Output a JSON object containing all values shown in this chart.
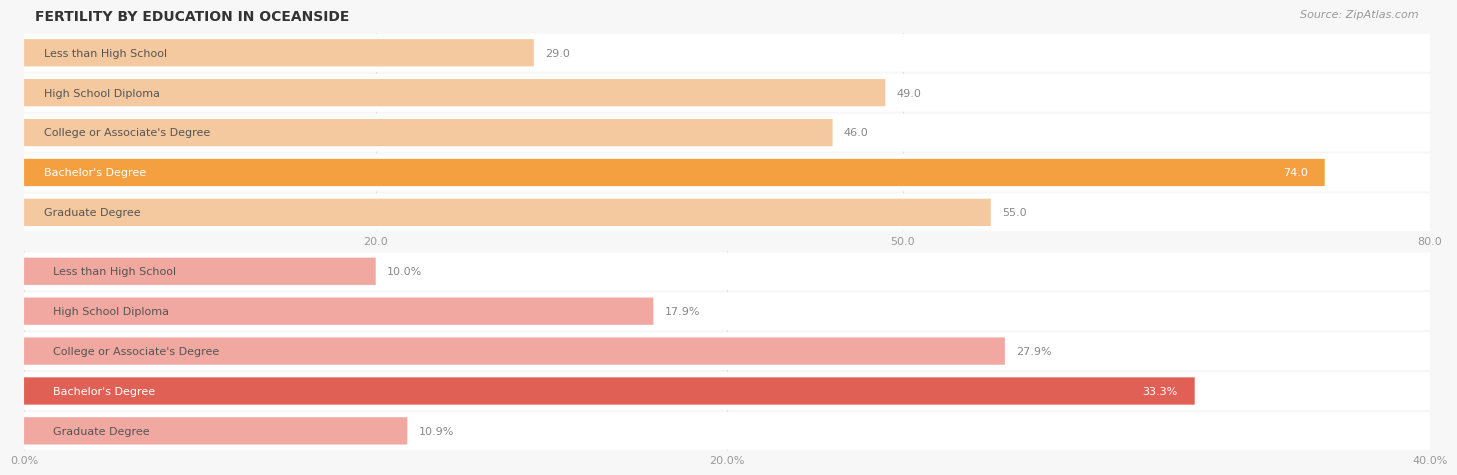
{
  "title": "FERTILITY BY EDUCATION IN OCEANSIDE",
  "source": "Source: ZipAtlas.com",
  "top_section": {
    "categories": [
      "Less than High School",
      "High School Diploma",
      "College or Associate's Degree",
      "Bachelor's Degree",
      "Graduate Degree"
    ],
    "values": [
      29.0,
      49.0,
      46.0,
      74.0,
      55.0
    ],
    "xlim": [
      0,
      80.0
    ],
    "xticks": [
      20.0,
      50.0,
      80.0
    ],
    "bar_color_normal": "#f5c9a0",
    "bar_color_highlight": "#f5a040",
    "highlight_index": 3
  },
  "bottom_section": {
    "categories": [
      "Less than High School",
      "High School Diploma",
      "College or Associate's Degree",
      "Bachelor's Degree",
      "Graduate Degree"
    ],
    "values": [
      10.0,
      17.9,
      27.9,
      33.3,
      10.9
    ],
    "xlim": [
      0,
      40.0
    ],
    "xticks": [
      0.0,
      20.0,
      40.0
    ],
    "bar_color_normal": "#f0a8a0",
    "bar_color_highlight": "#e06055",
    "highlight_index": 3
  },
  "title_fontsize": 10,
  "source_fontsize": 8,
  "label_fontsize": 8,
  "value_fontsize": 8,
  "tick_fontsize": 8,
  "background_color": "#f7f7f7",
  "bar_height": 0.68,
  "title_color": "#333333",
  "source_color": "#999999"
}
